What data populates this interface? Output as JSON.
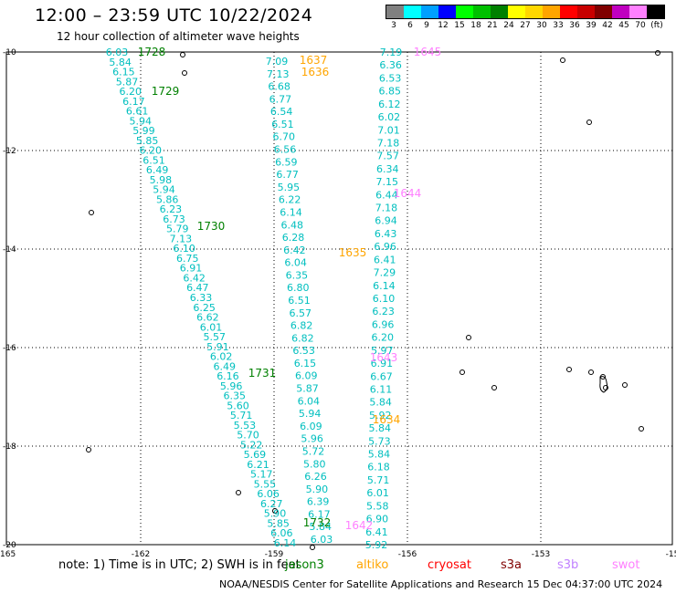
{
  "header": {
    "title": "12:00 – 23:59 UTC 10/22/2024",
    "subtitle": "12 hour collection of altimeter wave heights"
  },
  "colorbar": {
    "labels": [
      "3",
      "6",
      "9",
      "12",
      "15",
      "18",
      "21",
      "24",
      "27",
      "30",
      "33",
      "36",
      "39",
      "42",
      "45",
      "70",
      "(ft)"
    ],
    "colors": [
      "#808080",
      "#00ffff",
      "#00a0ff",
      "#0000ff",
      "#00ff00",
      "#00c000",
      "#008000",
      "#ffff00",
      "#ffd700",
      "#ffa500",
      "#ff0000",
      "#c80000",
      "#800000",
      "#c000c0",
      "#ff80ff",
      "#000000"
    ]
  },
  "axes": {
    "lat_labels": [
      "-10",
      "-12",
      "-14",
      "-16",
      "-18",
      "-20"
    ],
    "lon_labels": [
      "-165",
      "-162",
      "-159",
      "-156",
      "-153",
      "-15"
    ]
  },
  "tracks": [
    {
      "name": "track-jason3",
      "color": "#00bfbf",
      "x0": 128,
      "y0": 57,
      "x1": 312,
      "y1": 595,
      "values": [
        "6.03",
        "5.84",
        "6.15",
        "5.87",
        "6.20",
        "6.17",
        "6.61",
        "5.94",
        "5.99",
        "5.85",
        "6.20",
        "6.51",
        "6.49",
        "5.98",
        "5.94",
        "5.86",
        "6.23",
        "6.73",
        "5.79",
        "7.13",
        "6.10",
        "6.75",
        "6.91",
        "6.42",
        "6.47",
        "6.33",
        "6.25",
        "6.62",
        "6.01",
        "5.57",
        "5.91",
        "6.02",
        "6.49",
        "6.16",
        "5.96",
        "6.35",
        "5.60",
        "5.71",
        "5.53",
        "5.70",
        "5.22",
        "5.69",
        "6.21",
        "5.17",
        "5.55",
        "6.06",
        "6.27",
        "5.90",
        "5.85",
        "6.06",
        "6.14"
      ]
    },
    {
      "name": "track-altika",
      "color": "#00bfbf",
      "x0": 303,
      "y0": 67,
      "x1": 352,
      "y1": 591,
      "values": [
        "7.09",
        "7.13",
        "6.68",
        "6.77",
        "6.54",
        "6.51",
        "6.70",
        "6.56",
        "6.59",
        "6.77",
        "5.95",
        "6.22",
        "6.14",
        "6.48",
        "6.28",
        "6.42",
        "6.04",
        "6.35",
        "6.80",
        "6.51",
        "6.57",
        "6.82",
        "6.82",
        "6.53",
        "6.15",
        "6.09",
        "5.87",
        "6.04",
        "5.94",
        "6.09",
        "5.96",
        "5.72",
        "5.80",
        "6.26",
        "5.90",
        "6.39",
        "6.17",
        "5.84",
        "6.03"
      ]
    },
    {
      "name": "track-swot",
      "color": "#00bfbf",
      "x0": 428,
      "y0": 57,
      "x1": 412,
      "y1": 597,
      "values": [
        "7.19",
        "6.36",
        "6.53",
        "6.85",
        "6.12",
        "6.02",
        "7.01",
        "7.18",
        "7.57",
        "6.34",
        "7.15",
        "6.44",
        "7.18",
        "6.94",
        "6.43",
        "6.96",
        "6.41",
        "7.29",
        "6.14",
        "6.10",
        "6.23",
        "6.96",
        "6.20",
        "5.97",
        "6.91",
        "6.67",
        "6.11",
        "5.84",
        "5.92",
        "5.84",
        "5.73",
        "5.84",
        "6.18",
        "5.71",
        "6.01",
        "5.58",
        "6.90",
        "6.41",
        "5.92"
      ]
    }
  ],
  "time_labels": [
    {
      "text": "1728",
      "color": "#008000"
    },
    {
      "text": "1729",
      "color": "#008000"
    },
    {
      "text": "1730",
      "color": "#008000"
    },
    {
      "text": "1731",
      "color": "#008000"
    },
    {
      "text": "1732",
      "color": "#008000"
    },
    {
      "text": "1637",
      "color": "#ffa500"
    },
    {
      "text": "1636",
      "color": "#ffa500"
    },
    {
      "text": "1635",
      "color": "#ffa500"
    },
    {
      "text": "1634",
      "color": "#ffa500"
    },
    {
      "text": "1645",
      "color": "#ff80ff"
    },
    {
      "text": "1644",
      "color": "#ff80ff"
    },
    {
      "text": "1643",
      "color": "#ff80ff"
    },
    {
      "text": "1642",
      "color": "#ff80ff"
    }
  ],
  "footer": {
    "note": "note:  1) Time is in UTC; 2) SWH is in feet",
    "satellites": [
      {
        "name": "jason3",
        "color": "#008000"
      },
      {
        "name": "altiko",
        "color": "#ffa500"
      },
      {
        "name": "cryosat",
        "color": "#ff0000"
      },
      {
        "name": "s3a",
        "color": "#800000"
      },
      {
        "name": "s3b",
        "color": "#c080ff"
      },
      {
        "name": "swot",
        "color": "#ff80ff"
      }
    ],
    "credit": "NOAA/NESDIS Center for Satellite Applications and Research    15 Dec 04:37:00 UTC 2024"
  }
}
